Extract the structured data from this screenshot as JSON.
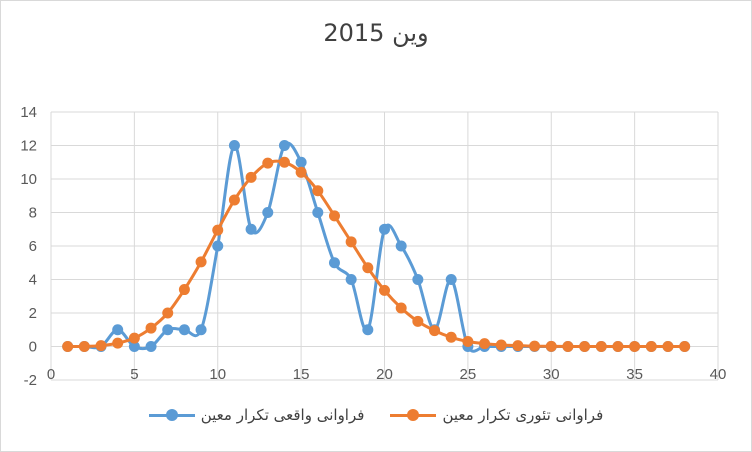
{
  "chart_data": {
    "type": "line",
    "title": "وین 2015",
    "xlabel": "",
    "ylabel": "",
    "xlim": [
      0,
      40
    ],
    "ylim": [
      -2,
      14
    ],
    "x_ticks": [
      0,
      5,
      10,
      15,
      20,
      25,
      30,
      35,
      40
    ],
    "y_ticks": [
      -2,
      0,
      2,
      4,
      6,
      8,
      10,
      12,
      14
    ],
    "x_tick_labels": [
      "0",
      "5",
      "10",
      "15",
      "20",
      "25",
      "30",
      "35",
      "40"
    ],
    "y_tick_labels": [
      "-2",
      "0",
      "2",
      "4",
      "6",
      "8",
      "10",
      "12",
      "14"
    ],
    "grid": true,
    "legend_position": "bottom",
    "series": [
      {
        "name": "فراوانی واقعی تکرار معین",
        "color": "#5b9bd5",
        "x": [
          1,
          2,
          3,
          4,
          5,
          6,
          7,
          8,
          9,
          10,
          11,
          12,
          13,
          14,
          15,
          16,
          17,
          18,
          19,
          20,
          21,
          22,
          23,
          24,
          25,
          26,
          27,
          28,
          29,
          30,
          31,
          32,
          33,
          34,
          35,
          36,
          37,
          38
        ],
        "values": [
          0,
          0,
          0,
          1,
          0,
          0,
          1,
          1,
          1,
          6,
          12,
          7,
          8,
          12,
          11,
          8,
          5,
          4,
          1,
          7,
          6,
          4,
          1,
          4,
          0,
          0,
          0,
          0,
          0,
          0,
          0,
          0,
          0,
          0,
          0,
          0,
          0,
          0
        ]
      },
      {
        "name": "فراوانی تئوری تکرار معین",
        "color": "#ed7d31",
        "x": [
          1,
          2,
          3,
          4,
          5,
          6,
          7,
          8,
          9,
          10,
          11,
          12,
          13,
          14,
          15,
          16,
          17,
          18,
          19,
          20,
          21,
          22,
          23,
          24,
          25,
          26,
          27,
          28,
          29,
          30,
          31,
          32,
          33,
          34,
          35,
          36,
          37,
          38
        ],
        "values": [
          0,
          0,
          0.05,
          0.2,
          0.5,
          1.1,
          2,
          3.4,
          5.05,
          6.95,
          8.75,
          10.1,
          10.95,
          11.0,
          10.4,
          9.3,
          7.8,
          6.25,
          4.7,
          3.35,
          2.3,
          1.5,
          0.95,
          0.55,
          0.3,
          0.17,
          0.09,
          0.05,
          0.02,
          0.01,
          0,
          0,
          0,
          0,
          0,
          0,
          0,
          0
        ]
      }
    ]
  }
}
